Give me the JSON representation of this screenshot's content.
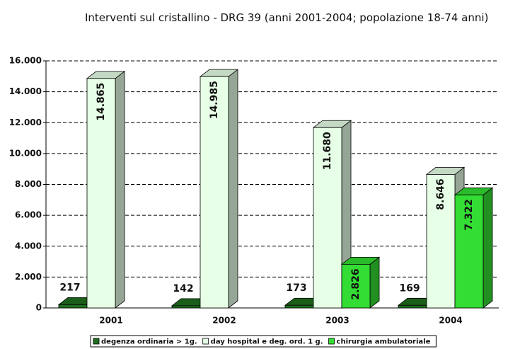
{
  "chart_data": {
    "type": "bar3d",
    "title": "Interventi sul cristallino - DRG 39 (anni 2001-2004; popolazione 18-74 anni)",
    "categories": [
      "2001",
      "2002",
      "2003",
      "2004"
    ],
    "series": [
      {
        "name": "degenza ordinaria > 1g.",
        "color": "#1f6e1f",
        "values": [
          217,
          142,
          173,
          169
        ]
      },
      {
        "name": "day hospital e deg. ord. 1 g.",
        "color": "#e6ffe6",
        "values": [
          14865,
          14985,
          11680,
          8646
        ],
        "value_labels": [
          "14.865",
          "14.985",
          "11.680",
          "8.646"
        ]
      },
      {
        "name": "chirurgia ambulatoriale",
        "color": "#33dd33",
        "values": [
          null,
          null,
          2826,
          7322
        ],
        "value_labels": [
          null,
          null,
          "2.826",
          "7.322"
        ]
      }
    ],
    "ylim": [
      0,
      16000
    ],
    "yticks": [
      0,
      {
        "value": 2000,
        "label": "2.000"
      },
      {
        "value": 4000,
        "label": "4.000"
      },
      {
        "value": 6000,
        "label": "6.000"
      },
      {
        "value": 8000,
        "label": "8.000"
      },
      {
        "value": 10000,
        "label": "10.000"
      },
      {
        "value": 12000,
        "label": "12.000"
      },
      {
        "value": 14000,
        "label": "14.000"
      },
      {
        "value": 16000,
        "label": "16.000"
      }
    ],
    "grid": true
  }
}
